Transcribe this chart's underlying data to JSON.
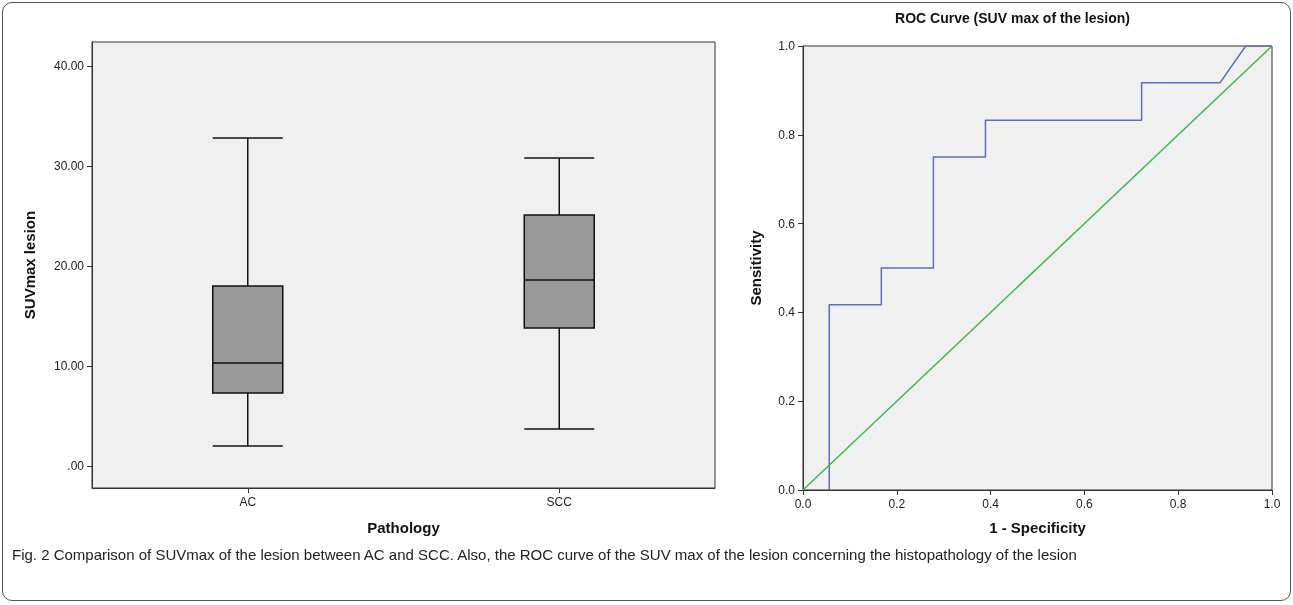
{
  "chart_data": [
    {
      "type": "box",
      "xlabel": "Pathology",
      "ylabel": "SUVmax lesion",
      "categories": [
        "AC",
        "SCC"
      ],
      "color": "#999999",
      "boxes": [
        {
          "low": 2.0,
          "q1": 7.3,
          "median": 10.3,
          "q3": 18.0,
          "high": 32.8
        },
        {
          "low": 3.7,
          "q1": 13.8,
          "median": 18.6,
          "q3": 25.1,
          "high": 30.8
        }
      ],
      "ylim": [
        -2.2,
        42.4
      ],
      "yticks": [
        {
          "value": 0,
          "label": ".00"
        },
        {
          "value": 10,
          "label": "10.00"
        },
        {
          "value": 20,
          "label": "20.00"
        },
        {
          "value": 30,
          "label": "30.00"
        },
        {
          "value": 40,
          "label": "40.00"
        }
      ],
      "grid": false,
      "annotations": [
        "Fig. 2  Comparison of SUVmax of the lesion between AC and SCC. Also, the ROC curve of the SUV max of the lesion concerning the histopathology of the lesion"
      ]
    },
    {
      "type": "line",
      "title": "ROC Curve (SUV max of the lesion)",
      "xlabel": "1 - Specificity",
      "ylabel": "Sensitivity",
      "series": [
        {
          "color": "#5b6fc0",
          "x": [
            0.056,
            0.056,
            0.167,
            0.167,
            0.278,
            0.278,
            0.389,
            0.389,
            0.722,
            0.722,
            0.889,
            0.944,
            1.0
          ],
          "values": [
            0.0,
            0.417,
            0.417,
            0.5,
            0.5,
            0.75,
            0.75,
            0.833,
            0.833,
            0.917,
            0.917,
            1.0,
            1.0
          ]
        },
        {
          "color": "#3cb94a",
          "x": [
            0,
            1
          ],
          "values": [
            0,
            1
          ]
        }
      ],
      "xlim": [
        0,
        1
      ],
      "ylim": [
        0,
        1
      ],
      "xticks": [
        {
          "value": 0,
          "label": "0.0"
        },
        {
          "value": 0.2,
          "label": "0.2"
        },
        {
          "value": 0.4,
          "label": "0.4"
        },
        {
          "value": 0.6,
          "label": "0.6"
        },
        {
          "value": 0.8,
          "label": "0.8"
        },
        {
          "value": 1,
          "label": "1.0"
        }
      ],
      "yticks": [
        {
          "value": 0,
          "label": "0.0"
        },
        {
          "value": 0.2,
          "label": "0.2"
        },
        {
          "value": 0.4,
          "label": "0.4"
        },
        {
          "value": 0.6,
          "label": "0.6"
        },
        {
          "value": 0.8,
          "label": "0.8"
        },
        {
          "value": 1,
          "label": "1.0"
        }
      ],
      "grid": false,
      "marker": "none",
      "line_style": "solid"
    }
  ]
}
